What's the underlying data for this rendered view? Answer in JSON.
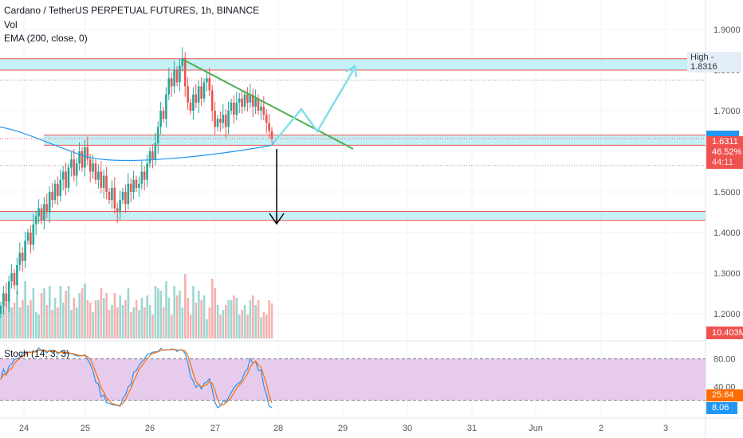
{
  "header": {
    "title": "Cardano / TetherUS PERPETUAL FUTURES, 1h, BINANCE",
    "vol_label": "Vol",
    "ema_label": "EMA (200, close, 0)"
  },
  "stoch": {
    "label": "Stoch (14, 3, 3)",
    "k_value": "25.64",
    "d_value": "8.06",
    "upper": 80,
    "lower": 20,
    "k_color": "#2196f3",
    "d_color": "#ff6d00",
    "band_color": "#e1bee7"
  },
  "price_axis": {
    "ticks": [
      "1.9000",
      "1.8000",
      "1.7000",
      "1.5000",
      "1.4000",
      "1.3000",
      "1.2000"
    ],
    "stoch_ticks": [
      "80.00",
      "40.00"
    ]
  },
  "tags": {
    "high": "High - 1.8316",
    "price": "1.6311",
    "change": "46.52%",
    "countdown": "44:11",
    "volume": "10.403M"
  },
  "date_axis": [
    "24",
    "25",
    "26",
    "27",
    "28",
    "29",
    "30",
    "31",
    "Jun",
    "2",
    "3"
  ],
  "chart_data": {
    "type": "candlestick",
    "interval": "1h",
    "closes": [
      1.22,
      1.25,
      1.23,
      1.28,
      1.3,
      1.27,
      1.32,
      1.35,
      1.33,
      1.38,
      1.4,
      1.37,
      1.42,
      1.44,
      1.46,
      1.43,
      1.47,
      1.45,
      1.5,
      1.48,
      1.52,
      1.49,
      1.53,
      1.55,
      1.51,
      1.56,
      1.58,
      1.54,
      1.57,
      1.6,
      1.56,
      1.61,
      1.58,
      1.55,
      1.57,
      1.53,
      1.55,
      1.51,
      1.54,
      1.5,
      1.48,
      1.51,
      1.46,
      1.45,
      1.48,
      1.5,
      1.47,
      1.52,
      1.5,
      1.53,
      1.51,
      1.52,
      1.55,
      1.53,
      1.57,
      1.6,
      1.58,
      1.62,
      1.66,
      1.7,
      1.68,
      1.74,
      1.78,
      1.76,
      1.8,
      1.77,
      1.81,
      1.83,
      1.76,
      1.72,
      1.7,
      1.74,
      1.72,
      1.76,
      1.73,
      1.77,
      1.78,
      1.75,
      1.7,
      1.66,
      1.68,
      1.67,
      1.69,
      1.66,
      1.7,
      1.72,
      1.69,
      1.72,
      1.73,
      1.71,
      1.74,
      1.72,
      1.74,
      1.71,
      1.73,
      1.7,
      1.71,
      1.69,
      1.67,
      1.65,
      1.6311
    ],
    "ema200": [
      [
        0,
        1.66
      ],
      [
        15,
        1.61
      ],
      [
        30,
        1.59
      ],
      [
        55,
        1.585
      ],
      [
        80,
        1.59
      ],
      [
        100,
        1.615
      ],
      [
        101,
        1.625
      ]
    ],
    "zones": [
      [
        1.8,
        1.828
      ],
      [
        1.615,
        1.64
      ],
      [
        1.43,
        1.452
      ]
    ],
    "dotted_levels": [
      1.775,
      1.565
    ],
    "up_color": "#26a69a",
    "down_color": "#ef5350",
    "trendline_color": "#4caf50",
    "projection_color": "#80deea",
    "ylim": [
      1.15,
      1.95
    ]
  }
}
